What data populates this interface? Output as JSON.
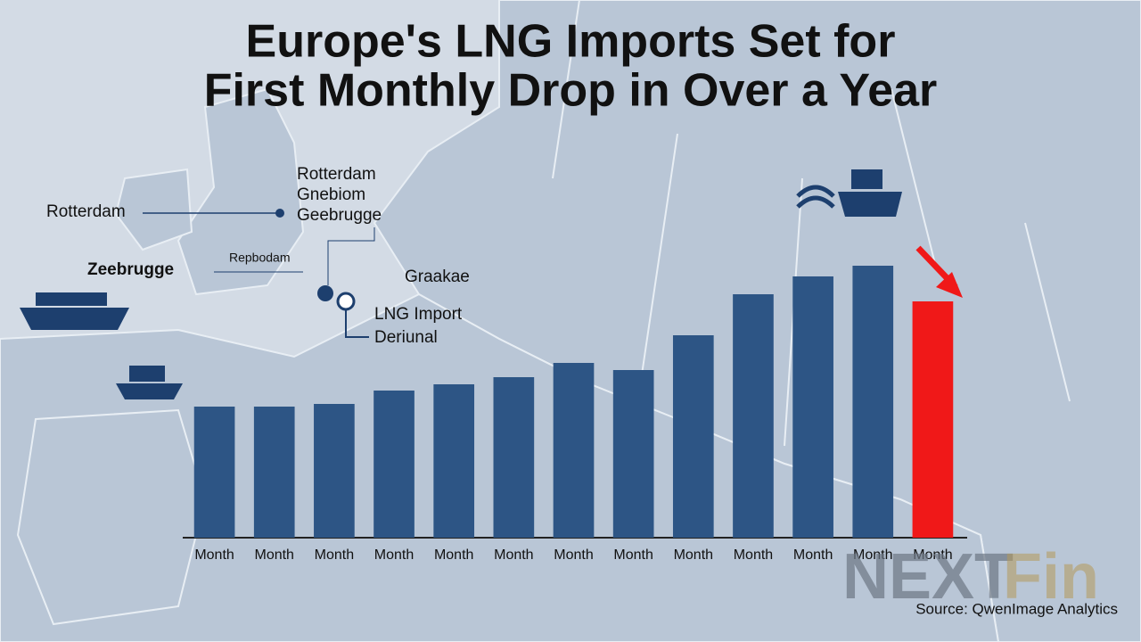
{
  "chart_data": {
    "type": "bar",
    "title_line1": "Europe's LNG Imports Set for",
    "title_line2": "First Monthly Drop in Over a Year",
    "categories": [
      "Month",
      "Month",
      "Month",
      "Month",
      "Month",
      "Month",
      "Month",
      "Month",
      "Month",
      "Month",
      "Month",
      "Month",
      "Month"
    ],
    "values": [
      147,
      147,
      150,
      165,
      172,
      180,
      196,
      188,
      227,
      273,
      293,
      305,
      265
    ],
    "colors": [
      "#2d5585",
      "#2d5585",
      "#2d5585",
      "#2d5585",
      "#2d5585",
      "#2d5585",
      "#2d5585",
      "#2d5585",
      "#2d5585",
      "#2d5585",
      "#2d5585",
      "#2d5585",
      "#f01818"
    ],
    "ylim": [
      0,
      400
    ],
    "annotations": {
      "rotterdam_left": "Rotterdam",
      "zeebrugge": "Zeebrugge",
      "repbodam": "Repbodam",
      "port_list": [
        "Rotterdam",
        "Gnebiom",
        "Geebrugge"
      ],
      "graakae": "Graakae",
      "terminal": [
        "LNG Import",
        "Deriunal"
      ]
    },
    "source": "Source: QwenImage Analytics",
    "watermark": [
      "NEXT",
      "Fin"
    ]
  }
}
